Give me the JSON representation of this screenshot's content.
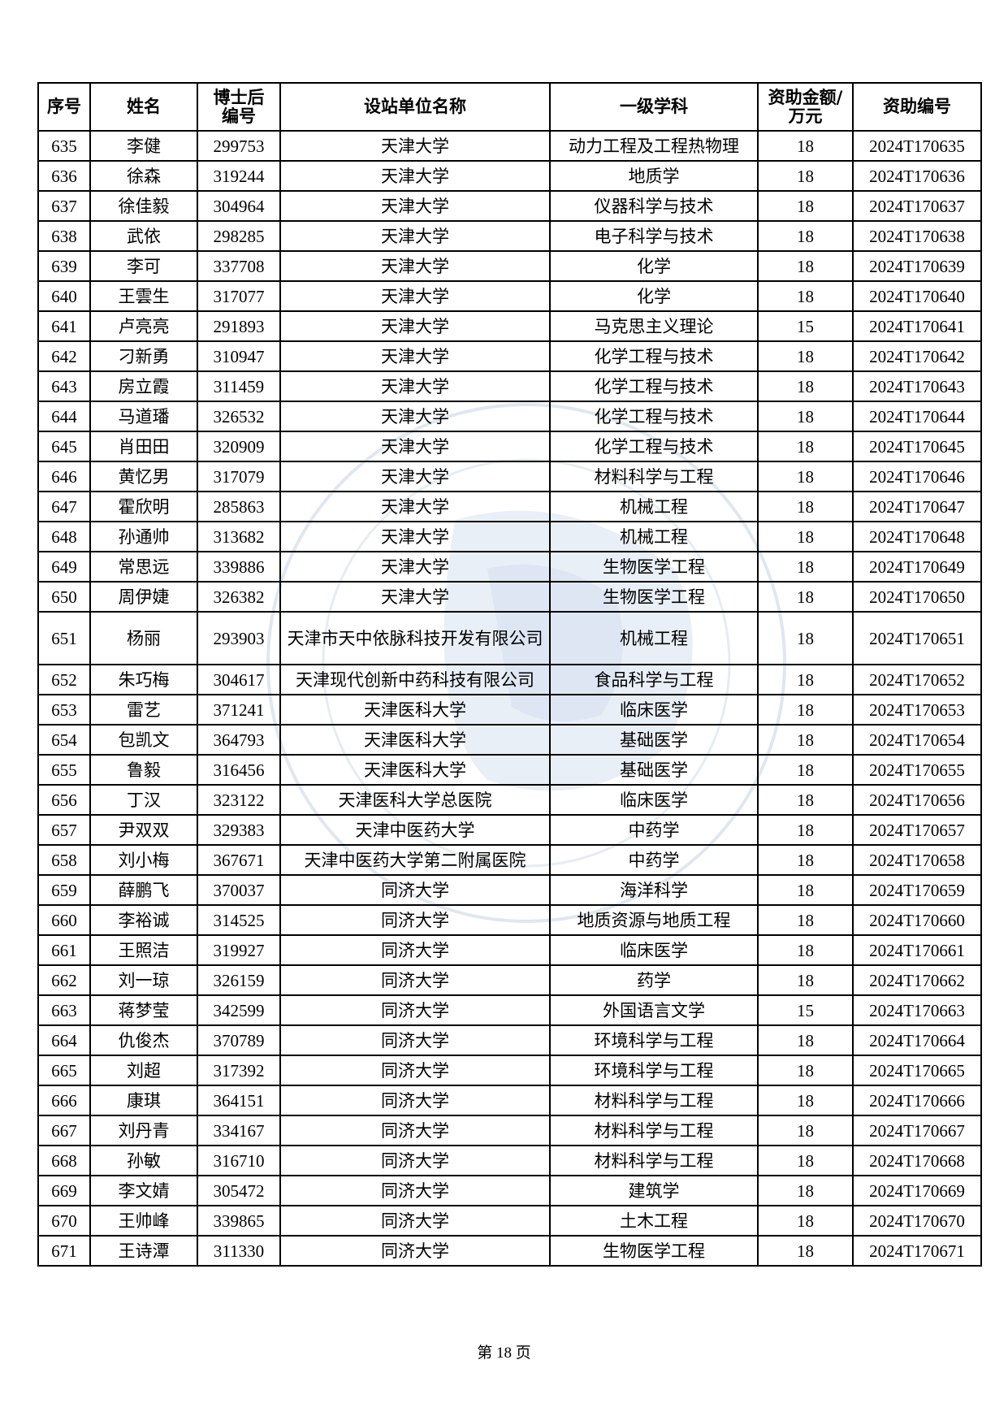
{
  "table": {
    "headers": [
      "序号",
      "姓名",
      "博士后\n编号",
      "设站单位名称",
      "一级学科",
      "资助金额/\n万元",
      "资助编号"
    ],
    "rows": [
      [
        "635",
        "李健",
        "299753",
        "天津大学",
        "动力工程及工程热物理",
        "18",
        "2024T170635"
      ],
      [
        "636",
        "徐森",
        "319244",
        "天津大学",
        "地质学",
        "18",
        "2024T170636"
      ],
      [
        "637",
        "徐佳毅",
        "304964",
        "天津大学",
        "仪器科学与技术",
        "18",
        "2024T170637"
      ],
      [
        "638",
        "武依",
        "298285",
        "天津大学",
        "电子科学与技术",
        "18",
        "2024T170638"
      ],
      [
        "639",
        "李可",
        "337708",
        "天津大学",
        "化学",
        "18",
        "2024T170639"
      ],
      [
        "640",
        "王雲生",
        "317077",
        "天津大学",
        "化学",
        "18",
        "2024T170640"
      ],
      [
        "641",
        "卢亮亮",
        "291893",
        "天津大学",
        "马克思主义理论",
        "15",
        "2024T170641"
      ],
      [
        "642",
        "刁新勇",
        "310947",
        "天津大学",
        "化学工程与技术",
        "18",
        "2024T170642"
      ],
      [
        "643",
        "房立霞",
        "311459",
        "天津大学",
        "化学工程与技术",
        "18",
        "2024T170643"
      ],
      [
        "644",
        "马道璠",
        "326532",
        "天津大学",
        "化学工程与技术",
        "18",
        "2024T170644"
      ],
      [
        "645",
        "肖田田",
        "320909",
        "天津大学",
        "化学工程与技术",
        "18",
        "2024T170645"
      ],
      [
        "646",
        "黄忆男",
        "317079",
        "天津大学",
        "材料科学与工程",
        "18",
        "2024T170646"
      ],
      [
        "647",
        "霍欣明",
        "285863",
        "天津大学",
        "机械工程",
        "18",
        "2024T170647"
      ],
      [
        "648",
        "孙通帅",
        "313682",
        "天津大学",
        "机械工程",
        "18",
        "2024T170648"
      ],
      [
        "649",
        "常思远",
        "339886",
        "天津大学",
        "生物医学工程",
        "18",
        "2024T170649"
      ],
      [
        "650",
        "周伊婕",
        "326382",
        "天津大学",
        "生物医学工程",
        "18",
        "2024T170650"
      ],
      [
        "651",
        "杨丽",
        "293903",
        "天津市天中依脉科技开发有限公司",
        "机械工程",
        "18",
        "2024T170651"
      ],
      [
        "652",
        "朱巧梅",
        "304617",
        "天津现代创新中药科技有限公司",
        "食品科学与工程",
        "18",
        "2024T170652"
      ],
      [
        "653",
        "雷艺",
        "371241",
        "天津医科大学",
        "临床医学",
        "18",
        "2024T170653"
      ],
      [
        "654",
        "包凯文",
        "364793",
        "天津医科大学",
        "基础医学",
        "18",
        "2024T170654"
      ],
      [
        "655",
        "鲁毅",
        "316456",
        "天津医科大学",
        "基础医学",
        "18",
        "2024T170655"
      ],
      [
        "656",
        "丁汉",
        "323122",
        "天津医科大学总医院",
        "临床医学",
        "18",
        "2024T170656"
      ],
      [
        "657",
        "尹双双",
        "329383",
        "天津中医药大学",
        "中药学",
        "18",
        "2024T170657"
      ],
      [
        "658",
        "刘小梅",
        "367671",
        "天津中医药大学第二附属医院",
        "中药学",
        "18",
        "2024T170658"
      ],
      [
        "659",
        "薛鹏飞",
        "370037",
        "同济大学",
        "海洋科学",
        "18",
        "2024T170659"
      ],
      [
        "660",
        "李裕诚",
        "314525",
        "同济大学",
        "地质资源与地质工程",
        "18",
        "2024T170660"
      ],
      [
        "661",
        "王照洁",
        "319927",
        "同济大学",
        "临床医学",
        "18",
        "2024T170661"
      ],
      [
        "662",
        "刘一琼",
        "326159",
        "同济大学",
        "药学",
        "18",
        "2024T170662"
      ],
      [
        "663",
        "蒋梦莹",
        "342599",
        "同济大学",
        "外国语言文学",
        "15",
        "2024T170663"
      ],
      [
        "664",
        "仇俊杰",
        "370789",
        "同济大学",
        "环境科学与工程",
        "18",
        "2024T170664"
      ],
      [
        "665",
        "刘超",
        "317392",
        "同济大学",
        "环境科学与工程",
        "18",
        "2024T170665"
      ],
      [
        "666",
        "康琪",
        "364151",
        "同济大学",
        "材料科学与工程",
        "18",
        "2024T170666"
      ],
      [
        "667",
        "刘丹青",
        "334167",
        "同济大学",
        "材料科学与工程",
        "18",
        "2024T170667"
      ],
      [
        "668",
        "孙敏",
        "316710",
        "同济大学",
        "材料科学与工程",
        "18",
        "2024T170668"
      ],
      [
        "669",
        "李文婧",
        "305472",
        "同济大学",
        "建筑学",
        "18",
        "2024T170669"
      ],
      [
        "670",
        "王帅峰",
        "339865",
        "同济大学",
        "土木工程",
        "18",
        "2024T170670"
      ],
      [
        "671",
        "王诗潭",
        "311330",
        "同济大学",
        "生物医学工程",
        "18",
        "2024T170671"
      ]
    ]
  },
  "watermark": {
    "text": "CHINA POSTDOCTORAL SCIENCE FOUNDATION",
    "color": "#c9d6e8"
  },
  "footer": {
    "page_label": "第 18 页"
  }
}
